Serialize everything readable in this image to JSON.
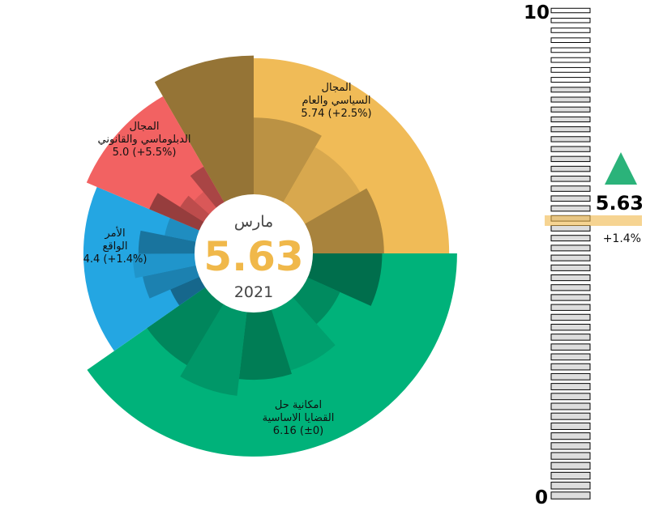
{
  "chart_data": {
    "type": "radial-bar",
    "center": {
      "month": "مارس",
      "value": "5.63",
      "year": "2021"
    },
    "scale": {
      "min": 0,
      "max": 10,
      "min_label": "0",
      "max_label": "10",
      "current": 5.63,
      "current_label": "5.63",
      "change_label": "+1.4%",
      "trend": "up"
    },
    "categories": [
      {
        "key": "political",
        "label_lines": [
          "المجال",
          "السياسي والعام",
          "5.74 (+2.5%)"
        ],
        "value": 5.74,
        "change": "+2.5%",
        "color": "#f0bb57",
        "sub_values": [
          7.6,
          4.3,
          3.6,
          4.0
        ]
      },
      {
        "key": "green",
        "label_lines": [
          "امكانية حل",
          "القضايا الاساسية",
          "6.16 (±0)"
        ],
        "value": 6.16,
        "change": "±0",
        "color": "#00b27a",
        "sub_values": [
          3.9,
          2.1,
          3.6,
          3.8,
          4.7,
          4.0
        ]
      },
      {
        "key": "blue",
        "label_lines": [
          "الأمر",
          "الواقع",
          "4.4 (+1.4%)"
        ],
        "value": 4.4,
        "change": "+1.4%",
        "color": "#24a6e2",
        "sub_values": [
          1.9,
          3.1,
          3.5,
          3.2,
          1.9
        ]
      },
      {
        "key": "red",
        "label_lines": [
          "المجال",
          "الدبلوماسي والقانوني",
          "5.0 (+5.5%)"
        ],
        "value": 5.0,
        "change": "+5.5%",
        "color": "#f26262",
        "sub_values": [
          3.1,
          1.7,
          1.3,
          2.4
        ]
      }
    ]
  }
}
